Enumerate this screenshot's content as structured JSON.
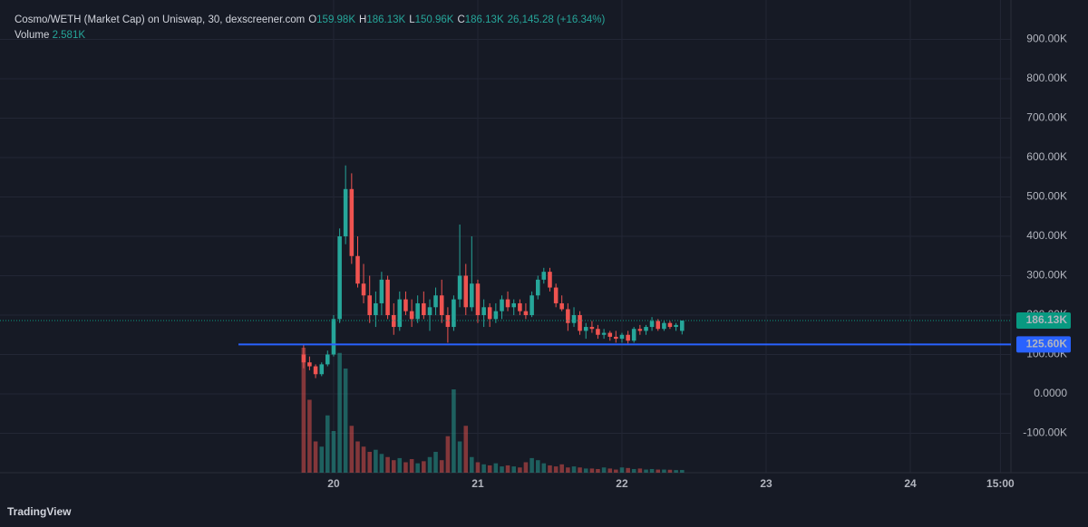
{
  "chart_data": {
    "type": "candlestick",
    "title": "Cosmo/WETH (Market Cap) on Uniswap, 30, dexscreener.com",
    "ohlc_legend": [
      {
        "key": "O",
        "text": "159.98K"
      },
      {
        "key": "H",
        "text": "186.13K"
      },
      {
        "key": "L",
        "text": "150.96K"
      },
      {
        "key": "C",
        "text": "186.13K"
      }
    ],
    "change": "26,145.28 (+16.34%)",
    "volume_legend": {
      "key": "Volume",
      "text": "2.581K"
    },
    "up_color": "#26a69a",
    "down_color": "#ef5350",
    "x": [
      19.792,
      19.833,
      19.875,
      19.917,
      19.958,
      20.0,
      20.042,
      20.083,
      20.125,
      20.167,
      20.208,
      20.25,
      20.292,
      20.333,
      20.375,
      20.417,
      20.458,
      20.5,
      20.542,
      20.583,
      20.625,
      20.667,
      20.708,
      20.75,
      20.792,
      20.833,
      20.875,
      20.917,
      20.958,
      21.0,
      21.042,
      21.083,
      21.125,
      21.167,
      21.208,
      21.25,
      21.292,
      21.333,
      21.375,
      21.417,
      21.458,
      21.5,
      21.542,
      21.583,
      21.625,
      21.667,
      21.708,
      21.75,
      21.792,
      21.833,
      21.875,
      21.917,
      21.958,
      22.0,
      22.042,
      22.083,
      22.125,
      22.167,
      22.208,
      22.25,
      22.292,
      22.333,
      22.375,
      22.417
    ],
    "open": [
      100000,
      80000,
      70000,
      50000,
      75000,
      100000,
      190000,
      400000,
      520000,
      350000,
      280000,
      250000,
      200000,
      230000,
      290000,
      200000,
      170000,
      240000,
      210000,
      190000,
      230000,
      200000,
      220000,
      250000,
      200000,
      170000,
      240000,
      300000,
      220000,
      280000,
      200000,
      220000,
      190000,
      210000,
      240000,
      220000,
      230000,
      210000,
      200000,
      250000,
      290000,
      310000,
      270000,
      230000,
      215000,
      180000,
      200000,
      160000,
      170000,
      165000,
      150000,
      155000,
      145000,
      140000,
      150000,
      135000,
      165000,
      160000,
      170000,
      185000,
      165000,
      180000,
      170000,
      159980
    ],
    "high": [
      125000,
      95000,
      75000,
      80000,
      110000,
      200000,
      420000,
      580000,
      560000,
      400000,
      330000,
      300000,
      260000,
      310000,
      300000,
      230000,
      260000,
      260000,
      240000,
      250000,
      260000,
      240000,
      270000,
      290000,
      220000,
      250000,
      430000,
      330000,
      400000,
      290000,
      240000,
      230000,
      230000,
      250000,
      260000,
      240000,
      240000,
      230000,
      260000,
      300000,
      320000,
      320000,
      280000,
      250000,
      230000,
      220000,
      210000,
      180000,
      185000,
      175000,
      165000,
      160000,
      160000,
      155000,
      160000,
      170000,
      175000,
      175000,
      195000,
      190000,
      185000,
      185000,
      180000,
      186130
    ],
    "low": [
      65000,
      60000,
      40000,
      45000,
      70000,
      95000,
      180000,
      380000,
      330000,
      270000,
      230000,
      180000,
      170000,
      200000,
      190000,
      150000,
      160000,
      200000,
      170000,
      180000,
      190000,
      160000,
      200000,
      180000,
      130000,
      160000,
      220000,
      200000,
      210000,
      180000,
      170000,
      170000,
      180000,
      190000,
      210000,
      200000,
      200000,
      190000,
      195000,
      240000,
      280000,
      260000,
      220000,
      210000,
      160000,
      170000,
      150000,
      140000,
      155000,
      140000,
      140000,
      135000,
      130000,
      130000,
      128000,
      130000,
      150000,
      150000,
      160000,
      160000,
      160000,
      165000,
      160000,
      150960
    ],
    "close": [
      80000,
      70000,
      50000,
      75000,
      100000,
      190000,
      400000,
      520000,
      350000,
      280000,
      250000,
      200000,
      230000,
      290000,
      200000,
      170000,
      240000,
      210000,
      190000,
      230000,
      200000,
      220000,
      250000,
      200000,
      170000,
      240000,
      300000,
      220000,
      280000,
      200000,
      220000,
      190000,
      210000,
      240000,
      220000,
      230000,
      210000,
      200000,
      250000,
      290000,
      310000,
      270000,
      230000,
      215000,
      180000,
      200000,
      160000,
      170000,
      165000,
      150000,
      155000,
      145000,
      140000,
      150000,
      135000,
      165000,
      160000,
      170000,
      185000,
      165000,
      180000,
      170000,
      175000,
      186130
    ],
    "volume": [
      120000,
      70000,
      30000,
      25000,
      55000,
      40000,
      115000,
      100000,
      45000,
      30000,
      25000,
      20000,
      22000,
      18000,
      15000,
      12000,
      14000,
      10000,
      13000,
      9000,
      11000,
      15000,
      20000,
      12000,
      35000,
      80000,
      30000,
      45000,
      15000,
      10000,
      8000,
      7000,
      9000,
      6000,
      7000,
      6000,
      5000,
      10000,
      14000,
      12000,
      9000,
      7000,
      6000,
      8000,
      5000,
      6000,
      5000,
      4000,
      4000,
      3500,
      5000,
      4000,
      3000,
      5000,
      4500,
      3500,
      4000,
      3000,
      3500,
      3000,
      3000,
      2800,
      2500,
      2581
    ],
    "xlim": [
      17.686,
      24.698
    ],
    "xticks": [
      20,
      21,
      22,
      23,
      24,
      {
        "value": 24.625,
        "label": "15:00"
      }
    ],
    "ylim": [
      -200000,
      1000000
    ],
    "yticks": [
      {
        "value": 900000,
        "label": "900.00K"
      },
      {
        "value": 800000,
        "label": "800.00K"
      },
      {
        "value": 700000,
        "label": "700.00K"
      },
      {
        "value": 600000,
        "label": "600.00K"
      },
      {
        "value": 500000,
        "label": "500.00K"
      },
      {
        "value": 400000,
        "label": "400.00K"
      },
      {
        "value": 300000,
        "label": "300.00K"
      },
      {
        "value": 200000,
        "label": "200.00K"
      },
      {
        "value": 100000,
        "label": "100.00K"
      },
      {
        "value": 0,
        "label": "0.0000"
      },
      {
        "value": -100000,
        "label": "-100.00K"
      }
    ],
    "grid": true,
    "last_price": {
      "value": 186130,
      "label": "186.13K",
      "color": "#089981"
    },
    "hline": {
      "value": 125600,
      "label": "125.60K",
      "color": "#2962ff"
    }
  },
  "brand": "TradingView"
}
